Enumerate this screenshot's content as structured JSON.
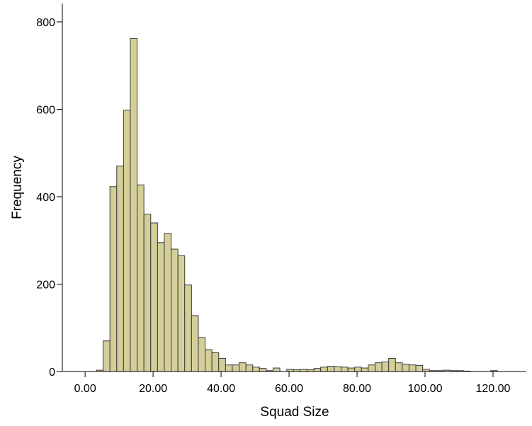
{
  "chart_data": {
    "type": "histogram",
    "x_label": "Squad Size",
    "y_label": "Frequency",
    "bins": [
      3.3,
      5.3,
      7.3,
      9.3,
      11.3,
      13.3,
      15.3,
      17.3,
      19.3,
      21.3,
      23.3,
      25.3,
      27.3,
      29.3,
      31.3,
      33.3,
      35.3,
      37.3,
      39.3,
      41.3,
      43.3,
      45.3,
      47.3,
      49.3,
      51.3,
      53.3,
      55.3,
      57.3,
      59.3,
      61.3,
      63.3,
      65.3,
      67.3,
      69.3,
      71.3,
      73.3,
      75.3,
      77.3,
      79.3,
      81.3,
      83.3,
      85.3,
      87.3,
      89.3,
      91.3,
      93.3,
      95.3,
      97.3,
      99.3,
      101.3,
      103.3,
      105.3,
      107.3,
      109.3,
      111.3,
      113.3,
      115.3,
      117.3,
      119.3,
      121.3
    ],
    "counts": [
      3,
      70,
      423,
      470,
      598,
      762,
      427,
      360,
      340,
      295,
      316,
      280,
      265,
      198,
      128,
      78,
      50,
      43,
      30,
      15,
      15,
      20,
      15,
      10,
      7,
      2,
      8,
      0,
      5,
      4,
      5,
      4,
      7,
      10,
      12,
      11,
      10,
      8,
      10,
      8,
      15,
      20,
      22,
      30,
      20,
      17,
      15,
      14,
      5,
      2,
      2,
      3,
      2,
      2,
      1,
      0,
      0,
      0,
      2
    ],
    "color": "#d4cf99",
    "xlim": [
      -6.7,
      129.8
    ],
    "ylim": [
      0,
      842
    ],
    "xticks": [
      {
        "value": 0,
        "label": "0.00"
      },
      {
        "value": 20,
        "label": "20.00"
      },
      {
        "value": 40,
        "label": "40.00"
      },
      {
        "value": 60,
        "label": "60.00"
      },
      {
        "value": 80,
        "label": "80.00"
      },
      {
        "value": 100,
        "label": "100.00"
      },
      {
        "value": 120,
        "label": "120.00"
      }
    ],
    "yticks": [
      0,
      200,
      400,
      600,
      800
    ]
  }
}
